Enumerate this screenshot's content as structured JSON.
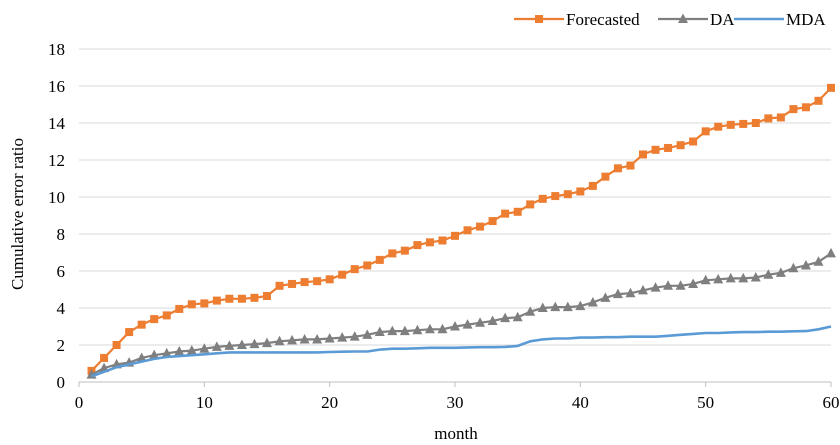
{
  "chart_data": {
    "type": "line",
    "title": "",
    "xlabel": "month",
    "ylabel": "Cumulative error ratio",
    "xlim": [
      0,
      60
    ],
    "ylim": [
      0,
      18
    ],
    "xticks": [
      0,
      10,
      20,
      30,
      40,
      50,
      60
    ],
    "yticks": [
      0,
      2,
      4,
      6,
      8,
      10,
      12,
      14,
      16,
      18
    ],
    "grid": "horizontal",
    "legend_position": "top-right",
    "x": [
      1,
      2,
      3,
      4,
      5,
      6,
      7,
      8,
      9,
      10,
      11,
      12,
      13,
      14,
      15,
      16,
      17,
      18,
      19,
      20,
      21,
      22,
      23,
      24,
      25,
      26,
      27,
      28,
      29,
      30,
      31,
      32,
      33,
      34,
      35,
      36,
      37,
      38,
      39,
      40,
      41,
      42,
      43,
      44,
      45,
      46,
      47,
      48,
      49,
      50,
      51,
      52,
      53,
      54,
      55,
      56,
      57,
      58,
      59,
      60
    ],
    "series": [
      {
        "name": "Forecasted",
        "color": "#ED7D31",
        "marker": "square",
        "values": [
          0.6,
          1.3,
          2.0,
          2.7,
          3.1,
          3.4,
          3.6,
          3.95,
          4.2,
          4.25,
          4.4,
          4.5,
          4.5,
          4.55,
          4.65,
          5.2,
          5.3,
          5.4,
          5.45,
          5.55,
          5.8,
          6.1,
          6.3,
          6.6,
          6.95,
          7.1,
          7.4,
          7.55,
          7.65,
          7.9,
          8.2,
          8.4,
          8.7,
          9.1,
          9.2,
          9.6,
          9.9,
          10.05,
          10.15,
          10.3,
          10.6,
          11.1,
          11.55,
          11.7,
          12.3,
          12.55,
          12.65,
          12.8,
          13.0,
          13.55,
          13.8,
          13.9,
          13.95,
          14.0,
          14.25,
          14.3,
          14.75,
          14.85,
          15.2,
          15.9
        ]
      },
      {
        "name": "DA",
        "color": "#7F7F7F",
        "marker": "triangle",
        "values": [
          0.4,
          0.75,
          0.95,
          1.05,
          1.3,
          1.45,
          1.55,
          1.65,
          1.7,
          1.8,
          1.9,
          1.95,
          2.0,
          2.05,
          2.1,
          2.2,
          2.25,
          2.3,
          2.3,
          2.35,
          2.4,
          2.45,
          2.55,
          2.7,
          2.75,
          2.75,
          2.8,
          2.85,
          2.85,
          3.0,
          3.1,
          3.2,
          3.3,
          3.45,
          3.5,
          3.8,
          4.0,
          4.05,
          4.05,
          4.1,
          4.3,
          4.55,
          4.75,
          4.8,
          4.95,
          5.1,
          5.2,
          5.2,
          5.3,
          5.5,
          5.55,
          5.6,
          5.6,
          5.65,
          5.8,
          5.9,
          6.15,
          6.3,
          6.5,
          6.95
        ]
      },
      {
        "name": "MDA",
        "color": "#5B9BD5",
        "marker": "none",
        "values": [
          0.3,
          0.55,
          0.8,
          0.95,
          1.1,
          1.25,
          1.35,
          1.4,
          1.45,
          1.5,
          1.55,
          1.6,
          1.6,
          1.6,
          1.6,
          1.6,
          1.6,
          1.6,
          1.6,
          1.62,
          1.64,
          1.65,
          1.65,
          1.75,
          1.8,
          1.8,
          1.82,
          1.85,
          1.85,
          1.85,
          1.87,
          1.88,
          1.88,
          1.9,
          1.95,
          2.2,
          2.3,
          2.35,
          2.35,
          2.4,
          2.4,
          2.42,
          2.42,
          2.45,
          2.45,
          2.45,
          2.5,
          2.55,
          2.6,
          2.65,
          2.65,
          2.68,
          2.7,
          2.7,
          2.72,
          2.72,
          2.74,
          2.75,
          2.85,
          3.0
        ]
      }
    ]
  }
}
